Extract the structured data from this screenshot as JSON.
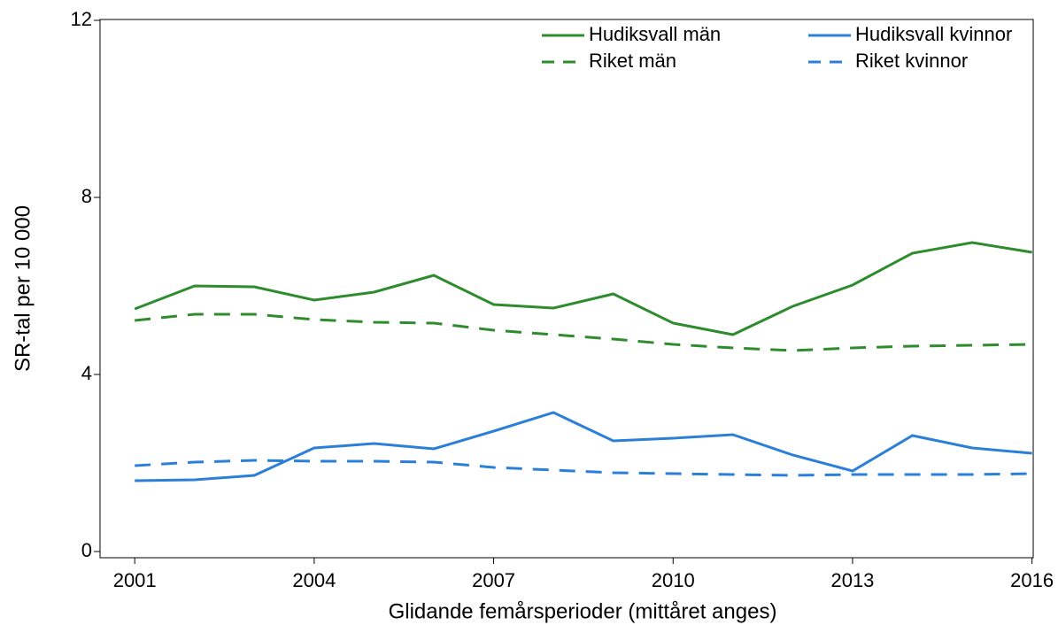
{
  "chart_data": {
    "type": "line",
    "x_label": "Glidande femårsperioder (mittåret anges)",
    "y_label": "SR-tal per 10 000",
    "x": [
      2001,
      2002,
      2003,
      2004,
      2005,
      2006,
      2007,
      2008,
      2009,
      2010,
      2011,
      2012,
      2013,
      2014,
      2015,
      2016
    ],
    "series": [
      {
        "name": "Hudiksvall män",
        "color": "#2e8b2e",
        "dashed": false,
        "values": [
          5.48,
          6.0,
          5.98,
          5.68,
          5.86,
          6.24,
          5.58,
          5.5,
          5.82,
          5.16,
          4.9,
          5.54,
          6.02,
          6.74,
          6.98,
          6.76
        ]
      },
      {
        "name": "Hudiksvall kvinnor",
        "color": "#2b7fd9",
        "dashed": false,
        "values": [
          1.6,
          1.62,
          1.72,
          2.34,
          2.44,
          2.32,
          2.72,
          3.14,
          2.5,
          2.56,
          2.64,
          2.18,
          1.82,
          2.62,
          2.34,
          2.22
        ]
      },
      {
        "name": "Riket män",
        "color": "#2e8b2e",
        "dashed": true,
        "values": [
          5.22,
          5.36,
          5.36,
          5.24,
          5.18,
          5.16,
          5.0,
          4.9,
          4.8,
          4.68,
          4.6,
          4.54,
          4.6,
          4.64,
          4.66,
          4.68
        ]
      },
      {
        "name": "Riket kvinnor",
        "color": "#2b7fd9",
        "dashed": true,
        "values": [
          1.94,
          2.02,
          2.06,
          2.04,
          2.04,
          2.02,
          1.9,
          1.84,
          1.78,
          1.76,
          1.74,
          1.72,
          1.74,
          1.74,
          1.74,
          1.76
        ]
      }
    ],
    "xlim": [
      2000.42,
      2016.02
    ],
    "xticks": [
      2001,
      2004,
      2007,
      2010,
      2013,
      2016
    ],
    "ylim": [
      -0.14,
      12.02
    ],
    "yticks": [
      0,
      4,
      8,
      12
    ],
    "legend": "top-right"
  }
}
